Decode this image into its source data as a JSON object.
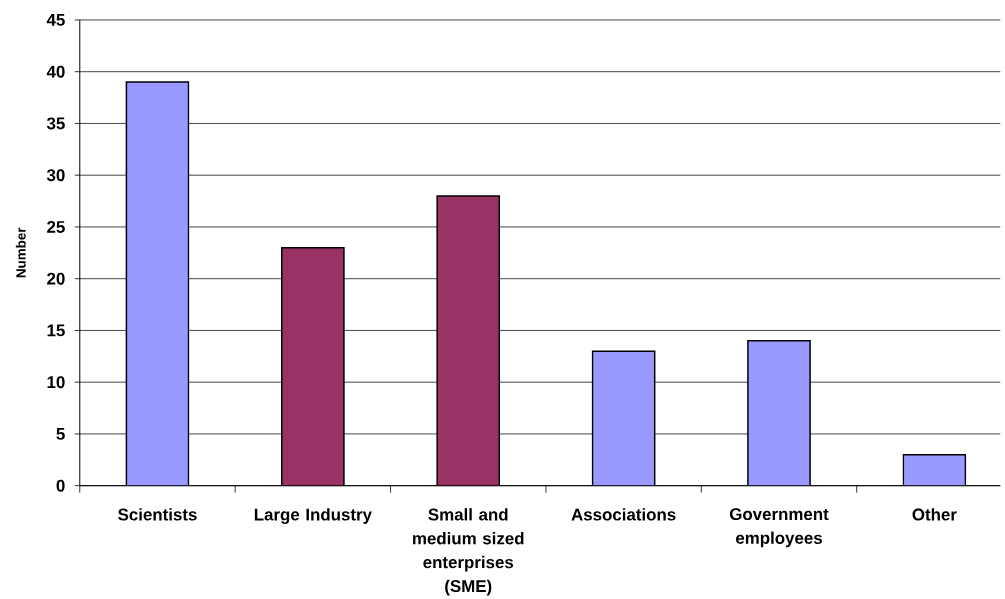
{
  "chart_data": {
    "type": "bar",
    "categories": [
      "Scientists",
      "Large Industry",
      "Small and medium sized enterprises (SME)",
      "Associations",
      "Government employees",
      "Other"
    ],
    "values": [
      39,
      23,
      28,
      13,
      14,
      3
    ],
    "colors": [
      "#9999ff",
      "#993366",
      "#993366",
      "#9999ff",
      "#9999ff",
      "#9999ff"
    ],
    "ylabel": "Number",
    "ylim": [
      0,
      45
    ],
    "yticks": [
      0,
      5,
      10,
      15,
      20,
      25,
      30,
      35,
      40,
      45
    ],
    "grid": "y"
  }
}
